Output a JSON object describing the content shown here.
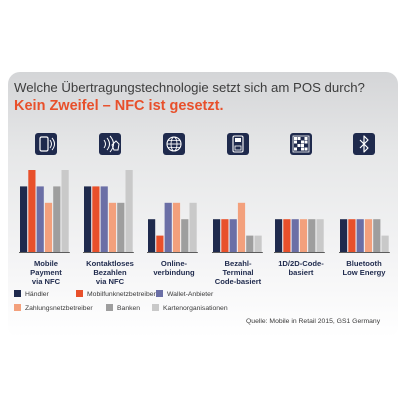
{
  "title": "Welche Übertragungstechnologie setzt sich am POS durch?",
  "subtitle": "Kein Zweifel – NFC ist gesetzt.",
  "source": "Quelle: Mobile in Retail 2015, GS1 Germany",
  "icons": [
    "phone-nfc-icon",
    "contactless-card-icon",
    "globe-icon",
    "terminal-icon",
    "qr-code-icon",
    "bluetooth-icon"
  ],
  "chart_data": {
    "type": "bar",
    "categories": [
      [
        "Mobile",
        "Payment",
        "via NFC"
      ],
      [
        "Kontaktloses",
        "Bezahlen",
        "via NFC"
      ],
      [
        "Online-",
        "verbindung"
      ],
      [
        "Bezahl-",
        "Terminal",
        "Code-basiert"
      ],
      [
        "1D/2D-Code-",
        "basiert"
      ],
      [
        "Bluetooth",
        "Low Energy"
      ]
    ],
    "series": [
      {
        "name": "Händler",
        "color": "#1f2a4d",
        "values": [
          4,
          4,
          2,
          2,
          2,
          2
        ]
      },
      {
        "name": "Mobilfunknetzbetreiber",
        "color": "#e8502b",
        "values": [
          5,
          4,
          1,
          2,
          2,
          2
        ]
      },
      {
        "name": "Wallet-Anbieter",
        "color": "#6b6fa6",
        "values": [
          4,
          4,
          3,
          2,
          2,
          2
        ]
      },
      {
        "name": "Zahlungsnetzbetreiber",
        "color": "#f3a07c",
        "values": [
          3,
          3,
          3,
          3,
          2,
          2
        ]
      },
      {
        "name": "Banken",
        "color": "#9e9e9e",
        "values": [
          4,
          3,
          2,
          1,
          2,
          2
        ]
      },
      {
        "name": "Kartenorganisationen",
        "color": "#c9c9c9",
        "values": [
          5,
          5,
          3,
          1,
          2,
          1
        ]
      }
    ],
    "ylim": [
      0,
      5
    ],
    "legend": "bottom"
  }
}
